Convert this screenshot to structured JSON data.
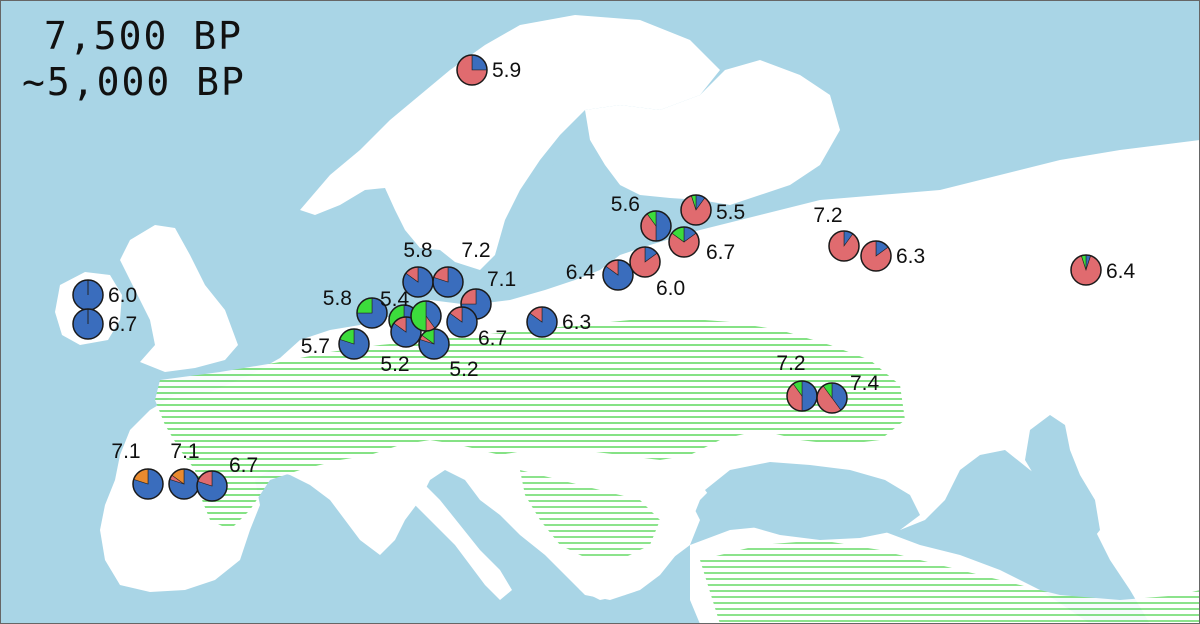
{
  "title": {
    "line1": "7,500 BP",
    "line2": "~5,000 BP"
  },
  "colors": {
    "sea": "#a9d5e6",
    "land": "#ffffff",
    "hatch": "#7fe07f",
    "component_blue": "#3a6dbd",
    "component_red": "#e06b6f",
    "component_green": "#3cdc3c",
    "component_orange": "#e98a2e"
  },
  "pie_components": [
    "blue",
    "red",
    "green",
    "orange"
  ],
  "samples": [
    {
      "id": "norway-north",
      "label": "5.9",
      "fractions": {
        "blue": 0.25,
        "red": 0.75
      }
    },
    {
      "id": "ireland-a",
      "label": "6.0",
      "fractions": {
        "blue": 1.0
      }
    },
    {
      "id": "ireland-b",
      "label": "6.7",
      "fractions": {
        "blue": 1.0
      }
    },
    {
      "id": "spain-a",
      "label": "7.1",
      "fractions": {
        "blue": 0.8,
        "orange": 0.2
      }
    },
    {
      "id": "spain-b",
      "label": "7.1",
      "fractions": {
        "blue": 0.8,
        "orange": 0.15,
        "red": 0.05
      }
    },
    {
      "id": "spain-c",
      "label": "6.7",
      "fractions": {
        "blue": 0.8,
        "red": 0.2
      }
    },
    {
      "id": "netherlands-a",
      "label": "5.8",
      "fractions": {
        "blue": 0.75,
        "green": 0.25
      }
    },
    {
      "id": "netherlands-b",
      "label": "5.4",
      "fractions": {
        "green": 0.7,
        "blue": 0.3
      }
    },
    {
      "id": "netherlands-c",
      "label": "5.7",
      "fractions": {
        "blue": 0.8,
        "green": 0.2
      }
    },
    {
      "id": "germany-a",
      "label": "5.2",
      "fractions": {
        "blue": 0.85,
        "red": 0.15
      }
    },
    {
      "id": "germany-b",
      "label": "5.2",
      "fractions": {
        "blue": 0.8,
        "green": 0.15,
        "red": 0.05
      }
    },
    {
      "id": "germany-c",
      "label": "",
      "fractions": {
        "green": 0.5,
        "blue": 0.4,
        "red": 0.1
      }
    },
    {
      "id": "denmark-a",
      "label": "5.8",
      "fractions": {
        "blue": 0.85,
        "red": 0.15
      }
    },
    {
      "id": "denmark-b",
      "label": "7.2",
      "fractions": {
        "blue": 0.8,
        "red": 0.2
      }
    },
    {
      "id": "germany-d",
      "label": "7.1",
      "fractions": {
        "blue": 0.75,
        "red": 0.25
      }
    },
    {
      "id": "germany-e",
      "label": "6.7",
      "fractions": {
        "blue": 0.85,
        "red": 0.15
      }
    },
    {
      "id": "poland-a",
      "label": "6.3",
      "fractions": {
        "blue": 0.85,
        "red": 0.15
      }
    },
    {
      "id": "baltic-a",
      "label": "6.4",
      "fractions": {
        "blue": 0.85,
        "red": 0.15
      }
    },
    {
      "id": "baltic-b",
      "label": "6.0",
      "fractions": {
        "red": 0.85,
        "blue": 0.15
      }
    },
    {
      "id": "finland-a",
      "label": "5.6",
      "fractions": {
        "blue": 0.5,
        "red": 0.4,
        "green": 0.1
      }
    },
    {
      "id": "finland-b",
      "label": "5.5",
      "fractions": {
        "red": 0.85,
        "blue": 0.1,
        "green": 0.05
      }
    },
    {
      "id": "finland-c",
      "label": "6.7",
      "fractions": {
        "red": 0.7,
        "green": 0.15,
        "blue": 0.15
      }
    },
    {
      "id": "russia-a",
      "label": "7.2",
      "fractions": {
        "red": 0.9,
        "blue": 0.1
      }
    },
    {
      "id": "russia-b",
      "label": "6.3",
      "fractions": {
        "red": 0.85,
        "blue": 0.15
      }
    },
    {
      "id": "russia-c",
      "label": "6.4",
      "fractions": {
        "red": 0.9,
        "blue": 0.05,
        "green": 0.05
      }
    },
    {
      "id": "ukraine-a",
      "label": "7.2",
      "fractions": {
        "blue": 0.5,
        "red": 0.4,
        "green": 0.1
      }
    },
    {
      "id": "ukraine-b",
      "label": "7.4",
      "fractions": {
        "red": 0.5,
        "blue": 0.4,
        "green": 0.1
      }
    }
  ]
}
